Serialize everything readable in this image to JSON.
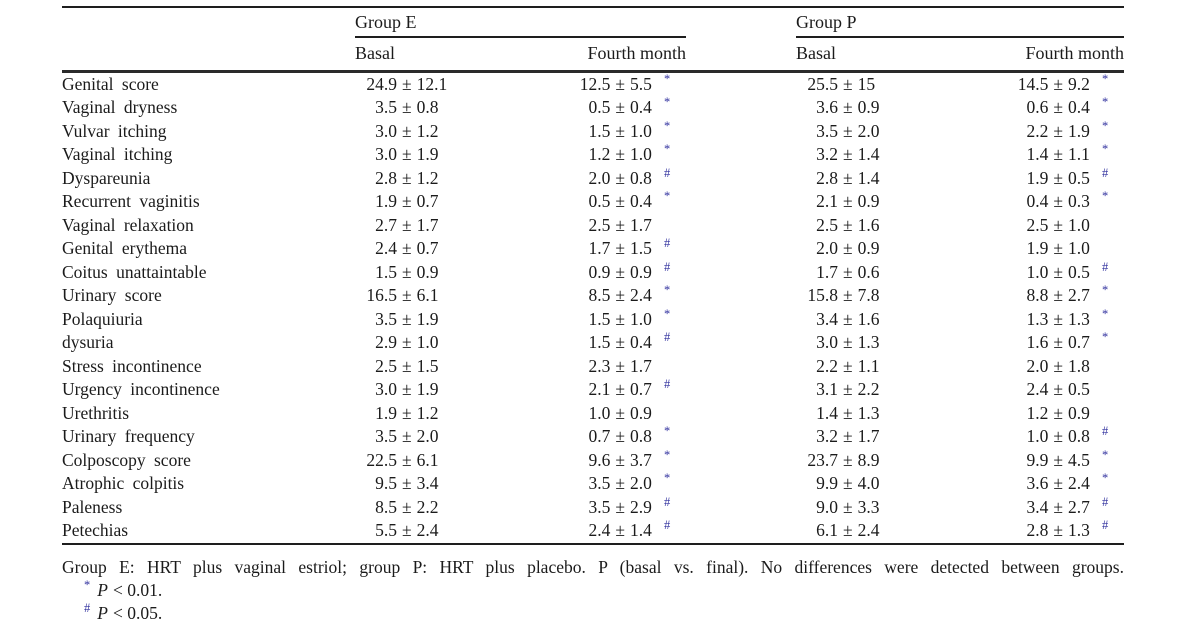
{
  "table": {
    "groups": [
      {
        "label": "Group E"
      },
      {
        "label": "Group P"
      }
    ],
    "subheaders": {
      "basal": "Basal",
      "fourth": "Fourth month"
    },
    "plus_minus": "±",
    "rows": [
      {
        "label": "Genital score",
        "cells": [
          {
            "m": "24.9",
            "sd": "12.1",
            "sup": ""
          },
          {
            "m": "12.5",
            "sd": "5.5",
            "sup": "*"
          },
          {
            "m": "25.5",
            "sd": "15",
            "sup": ""
          },
          {
            "m": "14.5",
            "sd": "9.2",
            "sup": "*"
          }
        ]
      },
      {
        "label": "Vaginal dryness",
        "cells": [
          {
            "m": "3.5",
            "sd": "0.8",
            "sup": ""
          },
          {
            "m": "0.5",
            "sd": "0.4",
            "sup": "*"
          },
          {
            "m": "3.6",
            "sd": "0.9",
            "sup": ""
          },
          {
            "m": "0.6",
            "sd": "0.4",
            "sup": "*"
          }
        ]
      },
      {
        "label": "Vulvar itching",
        "cells": [
          {
            "m": "3.0",
            "sd": "1.2",
            "sup": ""
          },
          {
            "m": "1.5",
            "sd": "1.0",
            "sup": "*"
          },
          {
            "m": "3.5",
            "sd": "2.0",
            "sup": ""
          },
          {
            "m": "2.2",
            "sd": "1.9",
            "sup": "*"
          }
        ]
      },
      {
        "label": "Vaginal itching",
        "cells": [
          {
            "m": "3.0",
            "sd": "1.9",
            "sup": ""
          },
          {
            "m": "1.2",
            "sd": "1.0",
            "sup": "*"
          },
          {
            "m": "3.2",
            "sd": "1.4",
            "sup": ""
          },
          {
            "m": "1.4",
            "sd": "1.1",
            "sup": "*"
          }
        ]
      },
      {
        "label": "Dyspareunia",
        "cells": [
          {
            "m": "2.8",
            "sd": "1.2",
            "sup": ""
          },
          {
            "m": "2.0",
            "sd": "0.8",
            "sup": "#"
          },
          {
            "m": "2.8",
            "sd": "1.4",
            "sup": ""
          },
          {
            "m": "1.9",
            "sd": "0.5",
            "sup": "#"
          }
        ]
      },
      {
        "label": "Recurrent vaginitis",
        "cells": [
          {
            "m": "1.9",
            "sd": "0.7",
            "sup": ""
          },
          {
            "m": "0.5",
            "sd": "0.4",
            "sup": "*"
          },
          {
            "m": "2.1",
            "sd": "0.9",
            "sup": ""
          },
          {
            "m": "0.4",
            "sd": "0.3",
            "sup": "*"
          }
        ]
      },
      {
        "label": "Vaginal relaxation",
        "cells": [
          {
            "m": "2.7",
            "sd": "1.7",
            "sup": ""
          },
          {
            "m": "2.5",
            "sd": "1.7",
            "sup": ""
          },
          {
            "m": "2.5",
            "sd": "1.6",
            "sup": ""
          },
          {
            "m": "2.5",
            "sd": "1.0",
            "sup": ""
          }
        ]
      },
      {
        "label": "Genital erythema",
        "cells": [
          {
            "m": "2.4",
            "sd": "0.7",
            "sup": ""
          },
          {
            "m": "1.7",
            "sd": "1.5",
            "sup": "#"
          },
          {
            "m": "2.0",
            "sd": "0.9",
            "sup": ""
          },
          {
            "m": "1.9",
            "sd": "1.0",
            "sup": ""
          }
        ]
      },
      {
        "label": "Coitus unattaintable",
        "cells": [
          {
            "m": "1.5",
            "sd": "0.9",
            "sup": ""
          },
          {
            "m": "0.9",
            "sd": "0.9",
            "sup": "#"
          },
          {
            "m": "1.7",
            "sd": "0.6",
            "sup": ""
          },
          {
            "m": "1.0",
            "sd": "0.5",
            "sup": "#"
          }
        ]
      },
      {
        "label": "Urinary score",
        "cells": [
          {
            "m": "16.5",
            "sd": "6.1",
            "sup": ""
          },
          {
            "m": "8.5",
            "sd": "2.4",
            "sup": "*"
          },
          {
            "m": "15.8",
            "sd": "7.8",
            "sup": ""
          },
          {
            "m": "8.8",
            "sd": "2.7",
            "sup": "*"
          }
        ]
      },
      {
        "label": "Polaquiuria",
        "cells": [
          {
            "m": "3.5",
            "sd": "1.9",
            "sup": ""
          },
          {
            "m": "1.5",
            "sd": "1.0",
            "sup": "*"
          },
          {
            "m": "3.4",
            "sd": "1.6",
            "sup": ""
          },
          {
            "m": "1.3",
            "sd": "1.3",
            "sup": "*"
          }
        ]
      },
      {
        "label": "dysuria",
        "cells": [
          {
            "m": "2.9",
            "sd": "1.0",
            "sup": ""
          },
          {
            "m": "1.5",
            "sd": "0.4",
            "sup": "#"
          },
          {
            "m": "3.0",
            "sd": "1.3",
            "sup": ""
          },
          {
            "m": "1.6",
            "sd": "0.7",
            "sup": "*"
          }
        ]
      },
      {
        "label": "Stress incontinence",
        "cells": [
          {
            "m": "2.5",
            "sd": "1.5",
            "sup": ""
          },
          {
            "m": "2.3",
            "sd": "1.7",
            "sup": ""
          },
          {
            "m": "2.2",
            "sd": "1.1",
            "sup": ""
          },
          {
            "m": "2.0",
            "sd": "1.8",
            "sup": ""
          }
        ]
      },
      {
        "label": "Urgency incontinence",
        "cells": [
          {
            "m": "3.0",
            "sd": "1.9",
            "sup": ""
          },
          {
            "m": "2.1",
            "sd": "0.7",
            "sup": "#"
          },
          {
            "m": "3.1",
            "sd": "2.2",
            "sup": ""
          },
          {
            "m": "2.4",
            "sd": "0.5",
            "sup": ""
          }
        ]
      },
      {
        "label": "Urethritis",
        "cells": [
          {
            "m": "1.9",
            "sd": "1.2",
            "sup": ""
          },
          {
            "m": "1.0",
            "sd": "0.9",
            "sup": ""
          },
          {
            "m": "1.4",
            "sd": "1.3",
            "sup": ""
          },
          {
            "m": "1.2",
            "sd": "0.9",
            "sup": ""
          }
        ]
      },
      {
        "label": "Urinary frequency",
        "cells": [
          {
            "m": "3.5",
            "sd": "2.0",
            "sup": ""
          },
          {
            "m": "0.7",
            "sd": "0.8",
            "sup": "*"
          },
          {
            "m": "3.2",
            "sd": "1.7",
            "sup": ""
          },
          {
            "m": "1.0",
            "sd": "0.8",
            "sup": "#"
          }
        ]
      },
      {
        "label": "Colposcopy score",
        "cells": [
          {
            "m": "22.5",
            "sd": "6.1",
            "sup": ""
          },
          {
            "m": "9.6",
            "sd": "3.7",
            "sup": "*"
          },
          {
            "m": "23.7",
            "sd": "8.9",
            "sup": ""
          },
          {
            "m": "9.9",
            "sd": "4.5",
            "sup": "*"
          }
        ]
      },
      {
        "label": "Atrophic colpitis",
        "cells": [
          {
            "m": "9.5",
            "sd": "3.4",
            "sup": ""
          },
          {
            "m": "3.5",
            "sd": "2.0",
            "sup": "*"
          },
          {
            "m": "9.9",
            "sd": "4.0",
            "sup": ""
          },
          {
            "m": "3.6",
            "sd": "2.4",
            "sup": "*"
          }
        ]
      },
      {
        "label": "Paleness",
        "cells": [
          {
            "m": "8.5",
            "sd": "2.2",
            "sup": ""
          },
          {
            "m": "3.5",
            "sd": "2.9",
            "sup": "#"
          },
          {
            "m": "9.0",
            "sd": "3.3",
            "sup": ""
          },
          {
            "m": "3.4",
            "sd": "2.7",
            "sup": "#"
          }
        ]
      },
      {
        "label": "Petechias",
        "cells": [
          {
            "m": "5.5",
            "sd": "2.4",
            "sup": ""
          },
          {
            "m": "2.4",
            "sd": "1.4",
            "sup": "#"
          },
          {
            "m": "6.1",
            "sd": "2.4",
            "sup": ""
          },
          {
            "m": "2.8",
            "sd": "1.3",
            "sup": "#"
          }
        ]
      }
    ]
  },
  "footnotes": {
    "general": "Group E: HRT plus vaginal estriol; group P: HRT plus placebo. P (basal vs. final). No differences were detected between groups.",
    "items": [
      {
        "marker": "*",
        "p": "P",
        "rest": "< 0.01."
      },
      {
        "marker": "#",
        "p": "P",
        "rest": "< 0.05."
      }
    ]
  },
  "colors": {
    "text": "#1b1b1b",
    "rule": "#1e1e1e",
    "significance_marker": "#32329f"
  }
}
